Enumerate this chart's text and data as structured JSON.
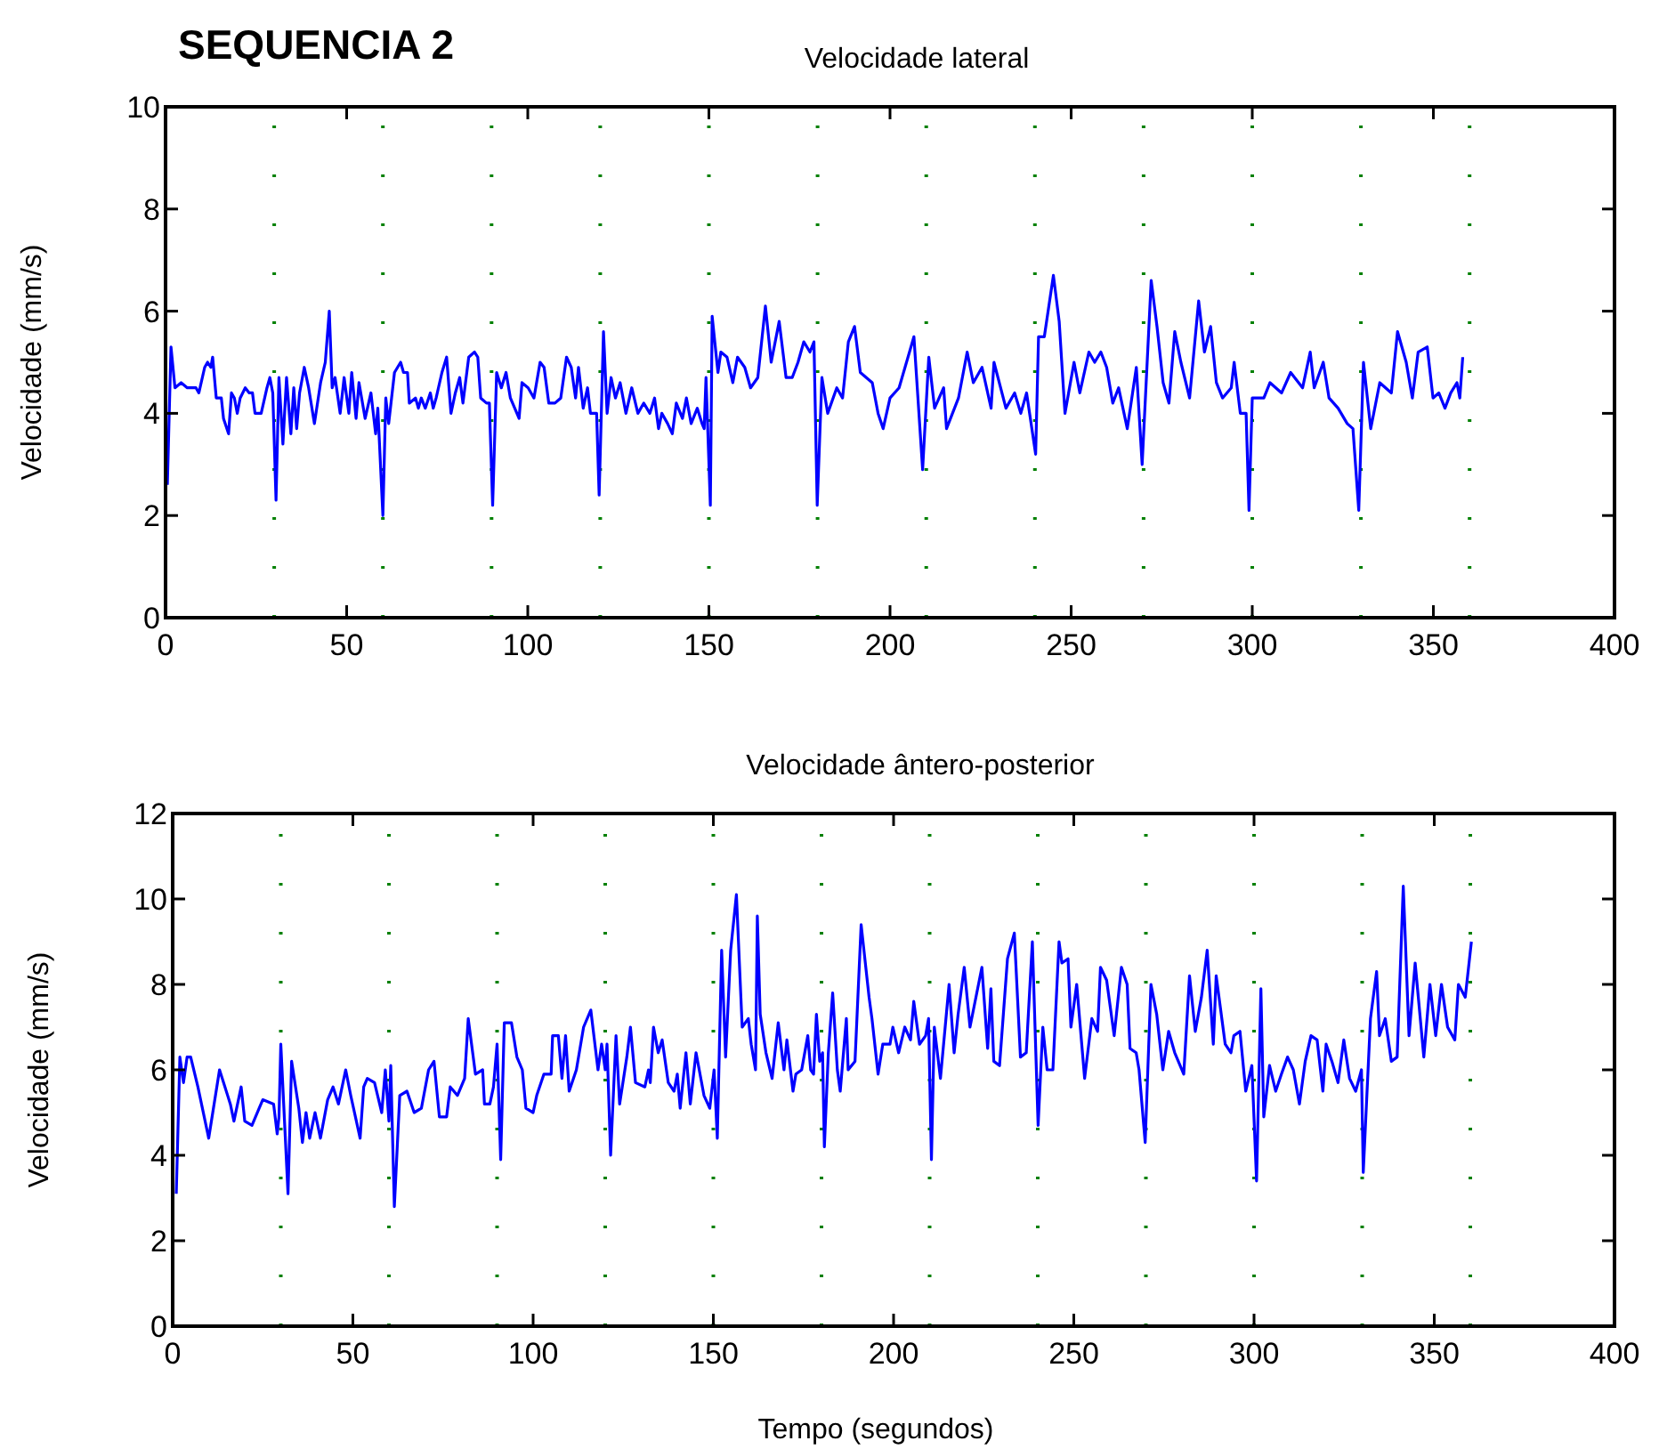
{
  "chart_data": [
    {
      "type": "line",
      "title": "Velocidade lateral",
      "ylabel": "Velocidade (mm/s)",
      "annotations": [
        "SEQUENCIA 2"
      ],
      "xlim": [
        0,
        400
      ],
      "xticks": [
        0,
        50,
        100,
        150,
        200,
        250,
        300,
        350,
        400
      ],
      "ylim": [
        0,
        10
      ],
      "yticks": [
        0,
        2,
        4,
        6,
        8,
        10
      ],
      "grid": false,
      "marker": "none",
      "line_style": "solid",
      "ref_lines": [
        {
          "axis": "x",
          "value": 30,
          "line_style": "dotted",
          "color": "#008000"
        },
        {
          "axis": "x",
          "value": 60,
          "line_style": "dotted",
          "color": "#008000"
        },
        {
          "axis": "x",
          "value": 90,
          "line_style": "dotted",
          "color": "#008000"
        },
        {
          "axis": "x",
          "value": 120,
          "line_style": "dotted",
          "color": "#008000"
        },
        {
          "axis": "x",
          "value": 150,
          "line_style": "dotted",
          "color": "#008000"
        },
        {
          "axis": "x",
          "value": 180,
          "line_style": "dotted",
          "color": "#008000"
        },
        {
          "axis": "x",
          "value": 210,
          "line_style": "dotted",
          "color": "#008000"
        },
        {
          "axis": "x",
          "value": 240,
          "line_style": "dotted",
          "color": "#008000"
        },
        {
          "axis": "x",
          "value": 270,
          "line_style": "dotted",
          "color": "#008000"
        },
        {
          "axis": "x",
          "value": 300,
          "line_style": "dotted",
          "color": "#008000"
        },
        {
          "axis": "x",
          "value": 330,
          "line_style": "dotted",
          "color": "#008000"
        },
        {
          "axis": "x",
          "value": 360,
          "line_style": "dotted",
          "color": "#008000"
        }
      ],
      "series": [
        {
          "color": "#0000ff",
          "x": [
            0.5,
            1.5,
            2.6,
            4.3,
            6,
            8.4,
            9.2,
            10.8,
            11.6,
            12.5,
            13,
            14,
            15.4,
            16,
            17.4,
            18.2,
            19,
            19.8,
            20.6,
            22,
            23.1,
            24,
            24.7,
            26.4,
            28,
            28.8,
            29.6,
            30.5,
            31.3,
            32.4,
            33.4,
            34.6,
            35.4,
            36.2,
            37,
            38.3,
            39.5,
            41.1,
            42.8,
            44.1,
            45.2,
            46,
            46.8,
            48.2,
            49.3,
            50.6,
            51.4,
            52.6,
            53.4,
            55.1,
            56.7,
            58,
            58.6,
            60,
            60.8,
            61.6,
            63.2,
            64.9,
            65.7,
            66.8,
            67.3,
            69,
            69.8,
            70.6,
            71.7,
            73.1,
            73.9,
            74.7,
            76.3,
            77.6,
            78.8,
            80,
            81.2,
            82.1,
            83.7,
            85.3,
            86.2,
            87,
            88.6,
            89.4,
            90.3,
            91.4,
            92.7,
            94,
            95.2,
            97.6,
            98.4,
            100.1,
            101.7,
            103.4,
            104.5,
            105.8,
            107.5,
            109.1,
            110.7,
            112,
            113.2,
            114,
            115.3,
            116.5,
            117.3,
            119,
            119.7,
            120.9,
            121.9,
            123,
            124.2,
            125.5,
            127.1,
            128.7,
            130.4,
            132,
            133.7,
            135,
            136.1,
            137,
            138.6,
            139.9,
            141,
            142.7,
            143.8,
            145.1,
            146.8,
            148.1,
            148.7,
            149.2,
            150.4,
            150.9,
            152.5,
            153.3,
            155,
            156.6,
            157.9,
            159.9,
            161.5,
            163.5,
            165.6,
            167.2,
            169.4,
            171.3,
            173,
            174.6,
            176.2,
            177.9,
            179,
            179.9,
            181.2,
            182.8,
            185.3,
            186.9,
            188.5,
            190.2,
            191.8,
            195.1,
            196.7,
            198.1,
            200,
            202.5,
            206.6,
            209,
            210.7,
            212.3,
            214.8,
            215.6,
            218.9,
            221.3,
            223,
            225.4,
            227.9,
            228.7,
            232,
            234.4,
            236.1,
            237.7,
            240.2,
            241,
            242.6,
            245.1,
            246.7,
            248.3,
            250.8,
            252.4,
            254.9,
            256.5,
            258.2,
            259.8,
            261.5,
            263.1,
            265.5,
            268,
            269.6,
            272.1,
            273.7,
            275.4,
            277,
            278.6,
            280.3,
            282.7,
            285.2,
            286.8,
            288.5,
            290.1,
            291.8,
            294.2,
            295,
            296.7,
            298.3,
            299.1,
            300,
            303.2,
            304.9,
            308.1,
            310.6,
            313.9,
            316,
            317.1,
            319.6,
            321.2,
            323.7,
            326.2,
            327.8,
            329.4,
            330.7,
            332.7,
            335.2,
            338.4,
            340.1,
            342.5,
            344.2,
            345.8,
            348.3,
            349.9,
            351.5,
            353.2,
            354.8,
            356.5,
            357.3,
            358.1
          ],
          "values": [
            2.6,
            5.3,
            4.5,
            4.6,
            4.5,
            4.5,
            4.4,
            4.9,
            5.0,
            4.9,
            5.1,
            4.3,
            4.3,
            3.9,
            3.6,
            4.4,
            4.3,
            4.0,
            4.3,
            4.5,
            4.4,
            4.4,
            4.0,
            4.0,
            4.5,
            4.7,
            4.4,
            2.3,
            4.7,
            3.4,
            4.7,
            3.6,
            4.5,
            3.7,
            4.4,
            4.9,
            4.5,
            3.8,
            4.6,
            5.0,
            6.0,
            4.5,
            4.7,
            4.0,
            4.7,
            4.0,
            4.8,
            3.9,
            4.6,
            3.9,
            4.4,
            3.6,
            4.1,
            2.0,
            4.3,
            3.8,
            4.8,
            5.0,
            4.8,
            4.8,
            4.2,
            4.3,
            4.1,
            4.3,
            4.1,
            4.4,
            4.1,
            4.3,
            4.8,
            5.1,
            4.0,
            4.4,
            4.7,
            4.2,
            5.1,
            5.2,
            5.1,
            4.3,
            4.2,
            4.2,
            2.2,
            4.8,
            4.5,
            4.8,
            4.3,
            3.9,
            4.6,
            4.5,
            4.3,
            5.0,
            4.9,
            4.2,
            4.2,
            4.3,
            5.1,
            4.9,
            4.3,
            4.9,
            4.1,
            4.5,
            4.0,
            4.0,
            2.4,
            5.6,
            4.0,
            4.7,
            4.3,
            4.6,
            4.0,
            4.5,
            4.0,
            4.2,
            4.0,
            4.3,
            3.7,
            4.0,
            3.8,
            3.6,
            4.2,
            3.9,
            4.3,
            3.8,
            4.1,
            3.8,
            3.7,
            4.7,
            2.2,
            5.9,
            4.8,
            5.2,
            5.1,
            4.6,
            5.1,
            4.9,
            4.5,
            4.7,
            6.1,
            5.0,
            5.8,
            4.7,
            4.7,
            5.0,
            5.4,
            5.2,
            5.4,
            2.2,
            4.7,
            4.0,
            4.5,
            4.3,
            5.4,
            5.7,
            4.8,
            4.6,
            4.0,
            3.7,
            4.3,
            4.5,
            5.5,
            2.9,
            5.1,
            4.1,
            4.5,
            3.7,
            4.3,
            5.2,
            4.6,
            4.9,
            4.1,
            5.0,
            4.1,
            4.4,
            4.0,
            4.4,
            3.2,
            5.5,
            5.5,
            6.7,
            5.8,
            4.0,
            5.0,
            4.4,
            5.2,
            5.0,
            5.2,
            4.9,
            4.2,
            4.5,
            3.7,
            4.9,
            3.0,
            6.6,
            5.7,
            4.6,
            4.2,
            5.6,
            5.0,
            4.3,
            6.2,
            5.2,
            5.7,
            4.6,
            4.3,
            4.5,
            5.0,
            4.0,
            4.0,
            2.1,
            4.3,
            4.3,
            4.6,
            4.4,
            4.8,
            4.5,
            5.2,
            4.5,
            5.0,
            4.3,
            4.1,
            3.8,
            3.7,
            2.1,
            5.0,
            3.7,
            4.6,
            4.4,
            5.6,
            5.0,
            4.3,
            5.2,
            5.3,
            4.3,
            4.4,
            4.1,
            4.4,
            4.6,
            4.3,
            5.1
          ]
        }
      ]
    },
    {
      "type": "line",
      "title": "Velocidade ântero-posterior",
      "xlabel": "Tempo (segundos)",
      "ylabel": "Velocidade (mm/s)",
      "xlim": [
        0,
        400
      ],
      "xticks": [
        0,
        50,
        100,
        150,
        200,
        250,
        300,
        350,
        400
      ],
      "ylim": [
        0,
        12
      ],
      "yticks": [
        0,
        2,
        4,
        6,
        8,
        10,
        12
      ],
      "grid": false,
      "marker": "none",
      "line_style": "solid",
      "ref_lines": [
        {
          "axis": "x",
          "value": 30,
          "line_style": "dotted",
          "color": "#008000"
        },
        {
          "axis": "x",
          "value": 60,
          "line_style": "dotted",
          "color": "#008000"
        },
        {
          "axis": "x",
          "value": 90,
          "line_style": "dotted",
          "color": "#008000"
        },
        {
          "axis": "x",
          "value": 120,
          "line_style": "dotted",
          "color": "#008000"
        },
        {
          "axis": "x",
          "value": 150,
          "line_style": "dotted",
          "color": "#008000"
        },
        {
          "axis": "x",
          "value": 180,
          "line_style": "dotted",
          "color": "#008000"
        },
        {
          "axis": "x",
          "value": 210,
          "line_style": "dotted",
          "color": "#008000"
        },
        {
          "axis": "x",
          "value": 240,
          "line_style": "dotted",
          "color": "#008000"
        },
        {
          "axis": "x",
          "value": 270,
          "line_style": "dotted",
          "color": "#008000"
        },
        {
          "axis": "x",
          "value": 300,
          "line_style": "dotted",
          "color": "#008000"
        },
        {
          "axis": "x",
          "value": 330,
          "line_style": "dotted",
          "color": "#008000"
        },
        {
          "axis": "x",
          "value": 360,
          "line_style": "dotted",
          "color": "#008000"
        }
      ],
      "series": [
        {
          "color": "#0000ff",
          "x": [
            1,
            2,
            3,
            4,
            5,
            7,
            10,
            13,
            16,
            17,
            19,
            20,
            22,
            24,
            25,
            28,
            29,
            29.5,
            30,
            32,
            33,
            35,
            36,
            37,
            38,
            39.5,
            41,
            43,
            44.5,
            46,
            48,
            49.4,
            52,
            53,
            54,
            56,
            58,
            59,
            60,
            60.5,
            61.5,
            63,
            65,
            67,
            69,
            71,
            72.5,
            74,
            76,
            77,
            79,
            81,
            82,
            84,
            86,
            86.5,
            88,
            89,
            90,
            91,
            92,
            94,
            95.5,
            97,
            98,
            100,
            101,
            103,
            105,
            105.4,
            107,
            108,
            109,
            110,
            112,
            114,
            116,
            118,
            119,
            120,
            120.5,
            121.5,
            123,
            124,
            126,
            127,
            128.4,
            131,
            132,
            132.5,
            133.4,
            134.7,
            135.8,
            137.5,
            139.1,
            140,
            140.8,
            142.4,
            143.6,
            145.2,
            147.4,
            149,
            150.2,
            151.1,
            152.3,
            153.4,
            154.8,
            156.4,
            158,
            159.7,
            160.5,
            161.7,
            162.2,
            163,
            164.6,
            166.3,
            168,
            169.6,
            170.4,
            172.1,
            172.9,
            174.5,
            176.2,
            177,
            177.8,
            178.6,
            179.5,
            180.3,
            180.8,
            181.9,
            183.1,
            184.4,
            185.2,
            186.9,
            187.4,
            189.3,
            191,
            193.2,
            194,
            195.7,
            197,
            199,
            199.8,
            201.4,
            203.1,
            204.7,
            205.6,
            207.2,
            208.9,
            209.7,
            210.5,
            211.3,
            213,
            215.4,
            216.8,
            217.9,
            219.6,
            221.2,
            224.5,
            226.1,
            227,
            227.8,
            229.4,
            231.6,
            233.5,
            235.2,
            236.8,
            238.5,
            240.1,
            241.4,
            242.6,
            244.2,
            245.9,
            246.7,
            248.4,
            249.2,
            250.8,
            253,
            255,
            256.6,
            257.4,
            259.1,
            261.2,
            263.2,
            264.8,
            265.6,
            267.3,
            268.1,
            269.8,
            271.4,
            273,
            274.7,
            276.3,
            278,
            280.5,
            282.1,
            283.7,
            285.4,
            287,
            288.7,
            289.5,
            292,
            293.6,
            294.4,
            296.1,
            297.7,
            299.4,
            300.7,
            301.9,
            302.7,
            304.3,
            306,
            307.6,
            309.3,
            310.9,
            312.6,
            314.2,
            315.8,
            317.5,
            319.1,
            320,
            321.6,
            323.3,
            324.9,
            326.5,
            328.2,
            329.8,
            330.3,
            332.3,
            334,
            334.8,
            336.4,
            338.1,
            339.7,
            341.4,
            343,
            344.7,
            347.1,
            348.8,
            350.4,
            352,
            353.7,
            355.7,
            356.7,
            358.6,
            360.3
          ],
          "values": [
            3.1,
            6.3,
            5.7,
            6.3,
            6.3,
            5.6,
            4.4,
            6.0,
            5.2,
            4.8,
            5.6,
            4.8,
            4.7,
            5.1,
            5.3,
            5.2,
            4.5,
            4.9,
            6.6,
            3.1,
            6.2,
            5.1,
            4.3,
            5.0,
            4.4,
            5.0,
            4.4,
            5.3,
            5.6,
            5.2,
            6.0,
            5.4,
            4.4,
            5.6,
            5.8,
            5.7,
            5.0,
            6.0,
            4.8,
            6.1,
            2.8,
            5.4,
            5.5,
            5.0,
            5.1,
            6.0,
            6.2,
            4.9,
            4.9,
            5.6,
            5.4,
            5.8,
            7.2,
            5.9,
            6.0,
            5.2,
            5.2,
            5.6,
            6.6,
            3.9,
            7.1,
            7.1,
            6.3,
            6.0,
            5.1,
            5.0,
            5.4,
            5.9,
            5.9,
            6.8,
            6.8,
            5.8,
            6.8,
            5.5,
            6.0,
            7.0,
            7.4,
            6.0,
            6.6,
            6.0,
            6.6,
            4.0,
            6.8,
            5.2,
            6.3,
            7.0,
            5.7,
            5.6,
            6.0,
            5.7,
            7.0,
            6.4,
            6.7,
            5.7,
            5.5,
            5.9,
            5.1,
            6.4,
            5.2,
            6.4,
            5.4,
            5.1,
            6.0,
            4.4,
            8.8,
            6.3,
            8.8,
            10.1,
            7.0,
            7.2,
            6.6,
            6.0,
            9.6,
            7.3,
            6.4,
            5.8,
            7.1,
            6.0,
            6.7,
            5.5,
            5.9,
            6.0,
            6.8,
            6.0,
            5.9,
            7.3,
            6.2,
            6.4,
            4.2,
            6.4,
            7.8,
            6.0,
            5.5,
            7.2,
            6.0,
            6.2,
            9.4,
            7.7,
            7.2,
            5.9,
            6.6,
            6.6,
            7.0,
            6.4,
            7.0,
            6.7,
            7.6,
            6.6,
            6.8,
            7.2,
            3.9,
            7.0,
            5.8,
            8.0,
            6.4,
            7.3,
            8.4,
            7.0,
            8.4,
            6.5,
            7.9,
            6.2,
            6.1,
            8.6,
            9.2,
            6.3,
            6.4,
            9.0,
            4.7,
            7.0,
            6.0,
            6.0,
            9.0,
            8.5,
            8.6,
            7.0,
            8.0,
            5.8,
            7.2,
            6.9,
            8.4,
            8.1,
            6.8,
            8.4,
            8.0,
            6.5,
            6.4,
            6.0,
            4.3,
            8.0,
            7.3,
            6.0,
            6.9,
            6.4,
            5.9,
            8.2,
            6.9,
            7.7,
            8.8,
            6.6,
            8.2,
            6.6,
            6.4,
            6.8,
            6.9,
            5.5,
            6.1,
            3.4,
            7.9,
            4.9,
            6.1,
            5.5,
            5.9,
            6.3,
            6.0,
            5.2,
            6.2,
            6.8,
            6.7,
            5.5,
            6.6,
            6.2,
            5.7,
            6.7,
            5.8,
            5.5,
            6.0,
            3.6,
            7.2,
            8.3,
            6.8,
            7.2,
            6.2,
            6.3,
            10.3,
            6.8,
            8.5,
            6.3,
            8.0,
            6.8,
            8.0,
            7.0,
            6.7,
            8.0,
            7.7,
            9.0
          ]
        }
      ]
    }
  ]
}
